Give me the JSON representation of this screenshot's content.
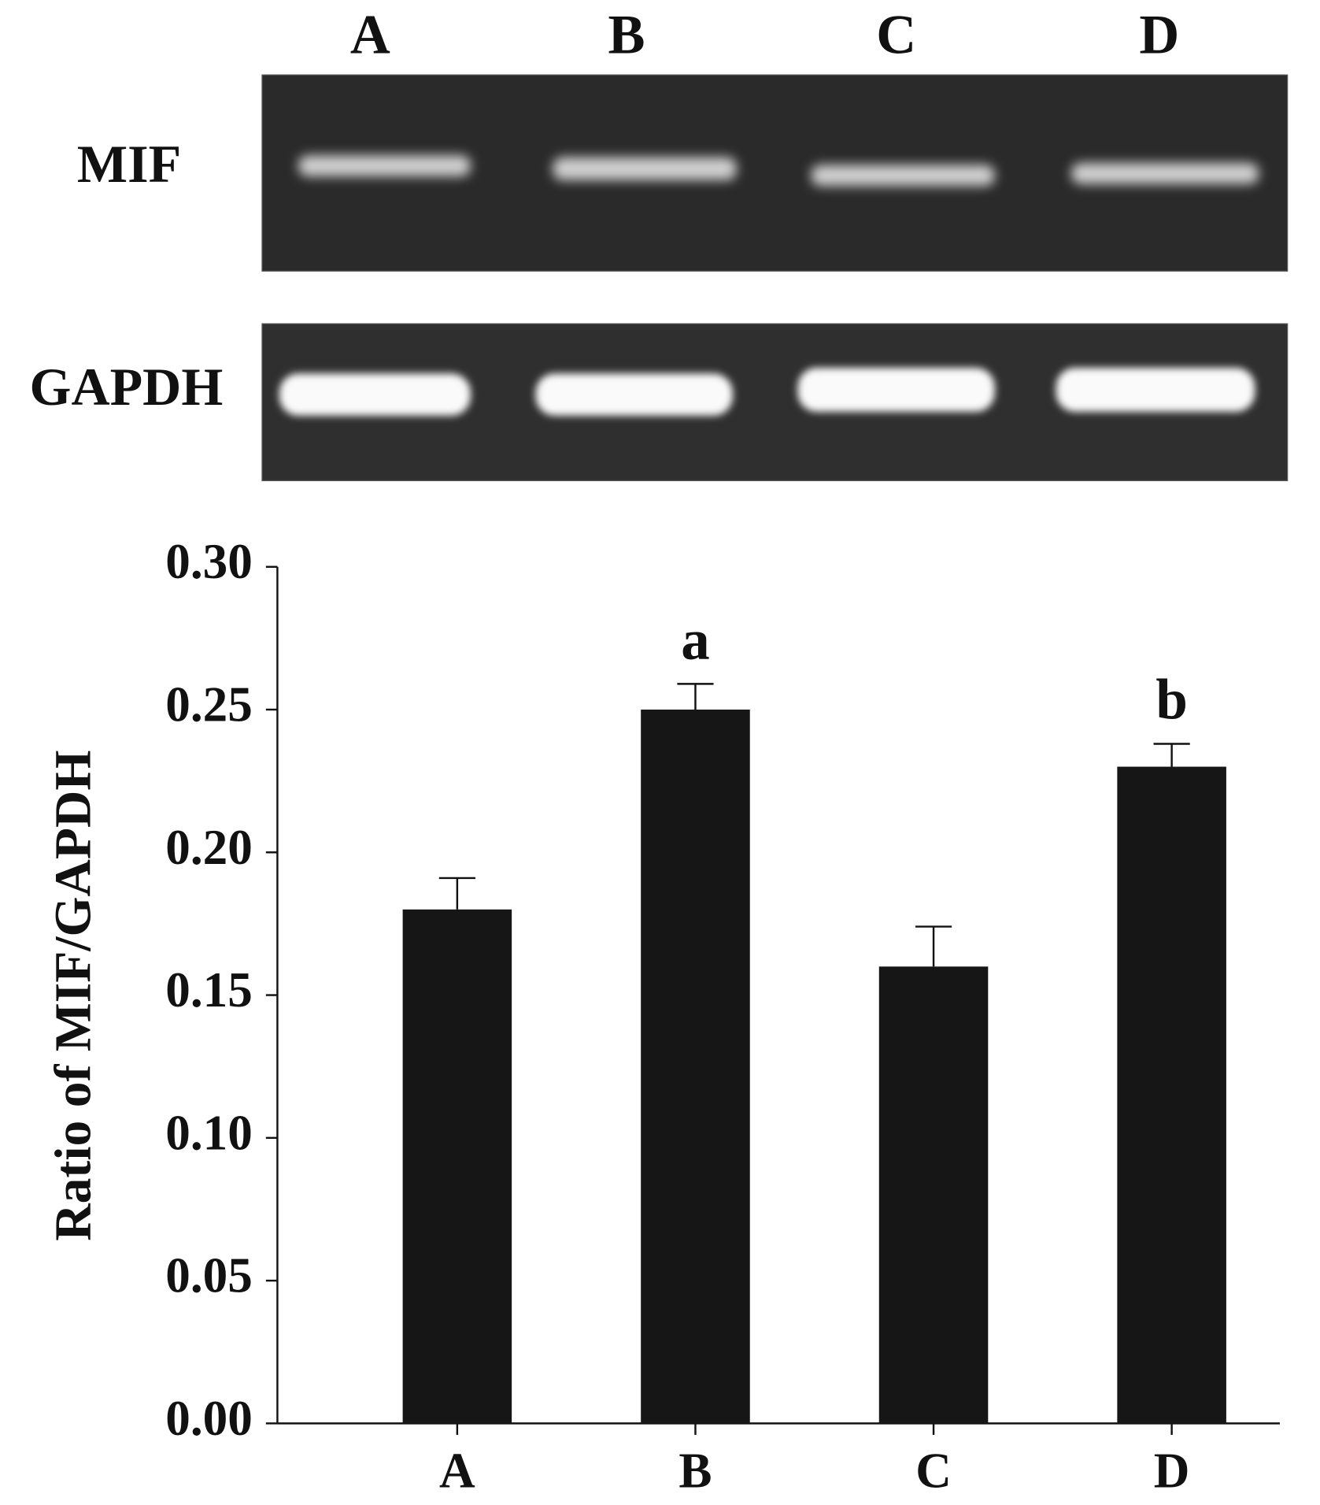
{
  "gel": {
    "lanes": [
      "A",
      "B",
      "C",
      "D"
    ],
    "rows": [
      "MIF",
      "GAPDH"
    ]
  },
  "chart_data": {
    "type": "bar",
    "y_label": "Ratio of MIF/GAPDH",
    "categories": [
      "A",
      "B",
      "C",
      "D"
    ],
    "values": [
      0.18,
      0.25,
      0.16,
      0.23
    ],
    "errors": [
      0.011,
      0.009,
      0.014,
      0.008
    ],
    "annotations": [
      null,
      "a",
      null,
      "b"
    ],
    "color": "#161616",
    "ylim": [
      0,
      0.3
    ],
    "yticks": [
      {
        "value": 0,
        "label": "0.00"
      },
      {
        "value": 0.05,
        "label": "0.05"
      },
      {
        "value": 0.1,
        "label": "0.10"
      },
      {
        "value": 0.15,
        "label": "0.15"
      },
      {
        "value": 0.2,
        "label": "0.20"
      },
      {
        "value": 0.25,
        "label": "0.25"
      },
      {
        "value": 0.3,
        "label": "0.30"
      }
    ]
  }
}
